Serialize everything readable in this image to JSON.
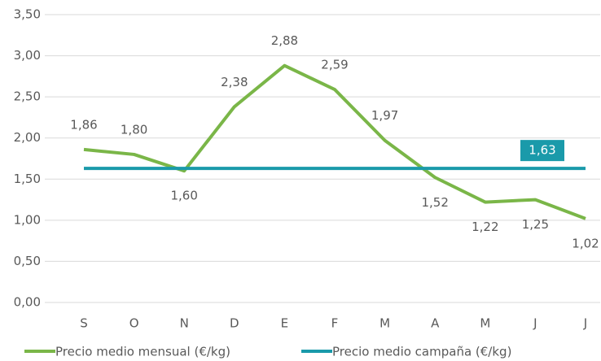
{
  "chart_data": {
    "type": "line",
    "categories": [
      "S",
      "O",
      "N",
      "D",
      "E",
      "F",
      "M",
      "A",
      "M",
      "J",
      "J"
    ],
    "series": [
      {
        "name": "Precio medio mensual (€/kg)",
        "color": "#7ab648",
        "values": [
          1.86,
          1.8,
          1.6,
          2.38,
          2.88,
          2.59,
          1.97,
          1.52,
          1.22,
          1.25,
          1.02
        ],
        "value_labels": [
          "1,86",
          "1,80",
          "1,60",
          "2,38",
          "2,88",
          "2,59",
          "1,97",
          "1,52",
          "1,22",
          "1,25",
          "1,02"
        ]
      },
      {
        "name": "Precio medio campaña (€/kg)",
        "color": "#1a9aaa",
        "values": [
          1.63,
          1.63,
          1.63,
          1.63,
          1.63,
          1.63,
          1.63,
          1.63,
          1.63,
          1.63,
          1.63
        ],
        "value_labels": [
          null,
          null,
          null,
          null,
          null,
          null,
          null,
          null,
          null,
          null,
          "1,63"
        ]
      }
    ],
    "ylim": [
      0,
      3.5
    ],
    "yticks": [
      {
        "value": 0,
        "label": "0,00"
      },
      {
        "value": 0.5,
        "label": "0,50"
      },
      {
        "value": 1,
        "label": "1,00"
      },
      {
        "value": 1.5,
        "label": "1,50"
      },
      {
        "value": 2,
        "label": "2,00"
      },
      {
        "value": 2.5,
        "label": "2,50"
      },
      {
        "value": 3,
        "label": "3,00"
      },
      {
        "value": 3.5,
        "label": "3,50"
      }
    ],
    "grid": true
  }
}
